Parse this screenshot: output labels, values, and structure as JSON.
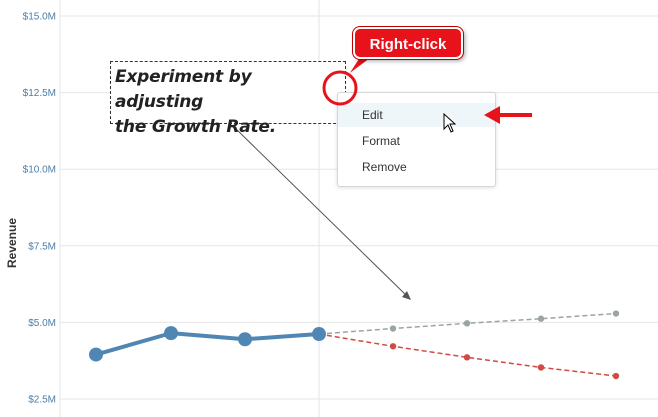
{
  "chart_data": {
    "type": "line",
    "ylabel": "Revenue",
    "ylim": [
      2500000,
      15000000
    ],
    "yticks": [
      "$2.5M",
      "$5.0M",
      "$7.5M",
      "$10.0M",
      "$12.5M",
      "$15.0M"
    ],
    "ytick_values": [
      2500000,
      5000000,
      7500000,
      10000000,
      12500000,
      15000000
    ],
    "grid": true,
    "series": [
      {
        "values": [
          3950000,
          4650000,
          4450000,
          4620000
        ],
        "color": "#4f86b3",
        "style": "solid"
      },
      {
        "values": [
          4620000,
          4800000,
          4970000,
          5120000,
          5290000
        ],
        "color": "#9aa5a0",
        "style": "dashed"
      },
      {
        "values": [
          4620000,
          4220000,
          3860000,
          3530000,
          3250000
        ],
        "color": "#d24a43",
        "style": "dashed"
      }
    ]
  },
  "annotation": {
    "text": "Experiment by adjusting\nthe Growth Rate."
  },
  "context_menu": {
    "items": [
      "Edit",
      "Format",
      "Remove"
    ],
    "hovered": "Edit"
  },
  "callout": {
    "label": "Right-click"
  },
  "colors": {
    "callout_red": "#e8121a",
    "arrow_red": "#e8121a",
    "grid": "#e6e6e6"
  },
  "icons": [
    "mouse-cursor-icon",
    "red-arrow-icon",
    "red-circle-highlight"
  ]
}
